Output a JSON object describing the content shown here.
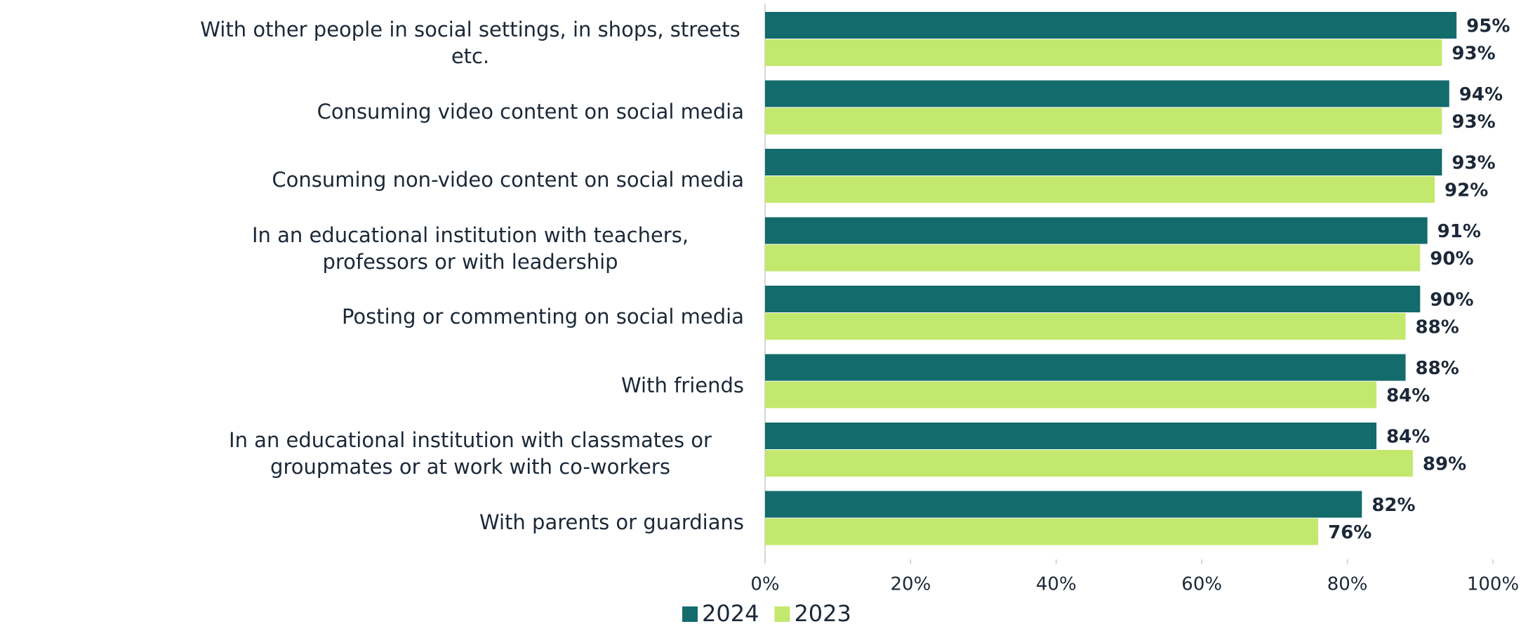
{
  "chart_data": {
    "type": "bar",
    "orientation": "horizontal",
    "categories": [
      "With other people in social settings, in shops, streets etc.",
      "Consuming video content on social media",
      "Consuming non-video content on social media",
      "In an educational institution with teachers, professors or with leadership",
      "Posting or commenting on social media",
      "With friends",
      "In an educational institution with classmates or groupmates or at work with co-workers",
      "With parents or guardians"
    ],
    "series": [
      {
        "name": "2024",
        "color": "#136b6b",
        "values": [
          95,
          94,
          93,
          91,
          90,
          88,
          84,
          82
        ],
        "value_labels": [
          "95%",
          "94%",
          "93%",
          "91%",
          "90%",
          "88%",
          "84%",
          "82%"
        ]
      },
      {
        "name": "2023",
        "color": "#c3e86e",
        "values": [
          93,
          93,
          92,
          90,
          88,
          84,
          89,
          76
        ],
        "value_labels": [
          "93%",
          "93%",
          "92%",
          "90%",
          "88%",
          "84%",
          "89%",
          "76%"
        ]
      }
    ],
    "xlim": [
      0,
      100
    ],
    "xticks": [
      {
        "value": 0,
        "label": "0%"
      },
      {
        "value": 20,
        "label": "20%"
      },
      {
        "value": 40,
        "label": "40%"
      },
      {
        "value": 60,
        "label": "60%"
      },
      {
        "value": 80,
        "label": "80%"
      },
      {
        "value": 100,
        "label": "100%"
      }
    ],
    "legend": "bottom"
  }
}
